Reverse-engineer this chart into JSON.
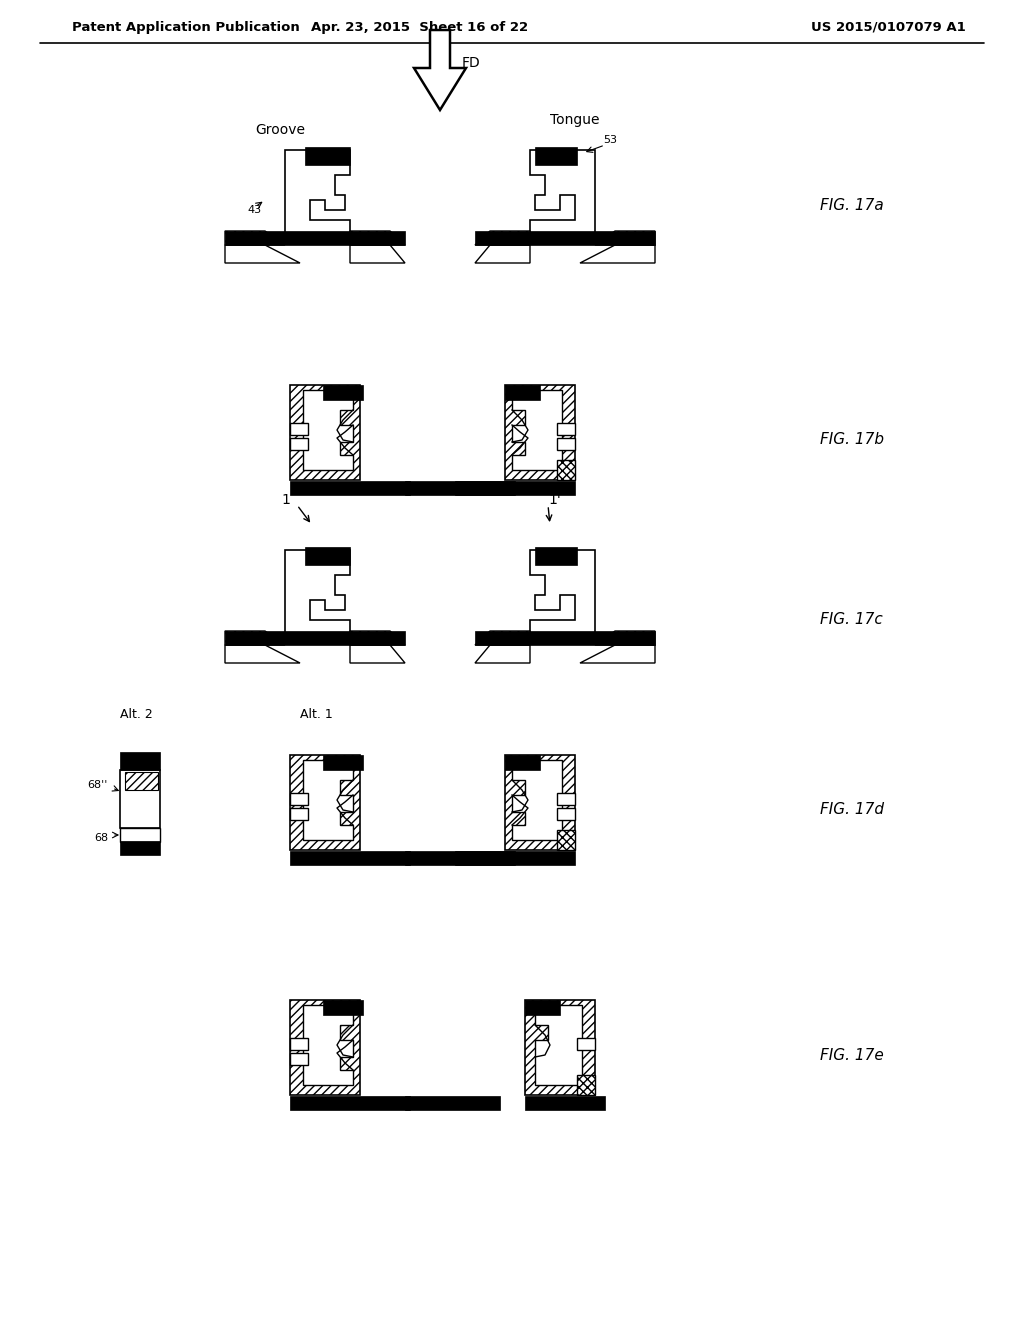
{
  "bg_color": "#ffffff",
  "header_left": "Patent Application Publication",
  "header_mid": "Apr. 23, 2015  Sheet 16 of 22",
  "header_right": "US 2015/0107079 A1",
  "fig_labels": [
    "FIG. 17a",
    "FIG. 17b",
    "FIG. 17c",
    "FIG. 17d",
    "FIG. 17e"
  ],
  "arrow_label": "FD",
  "groove_label": "Groove",
  "tongue_label": "Tongue",
  "label_43": "43",
  "label_53": "53",
  "label_1": "1",
  "label_1p": "1'",
  "label_alt1": "Alt. 1",
  "label_alt2": "Alt. 2",
  "label_68": "68",
  "label_68pp": "68''"
}
